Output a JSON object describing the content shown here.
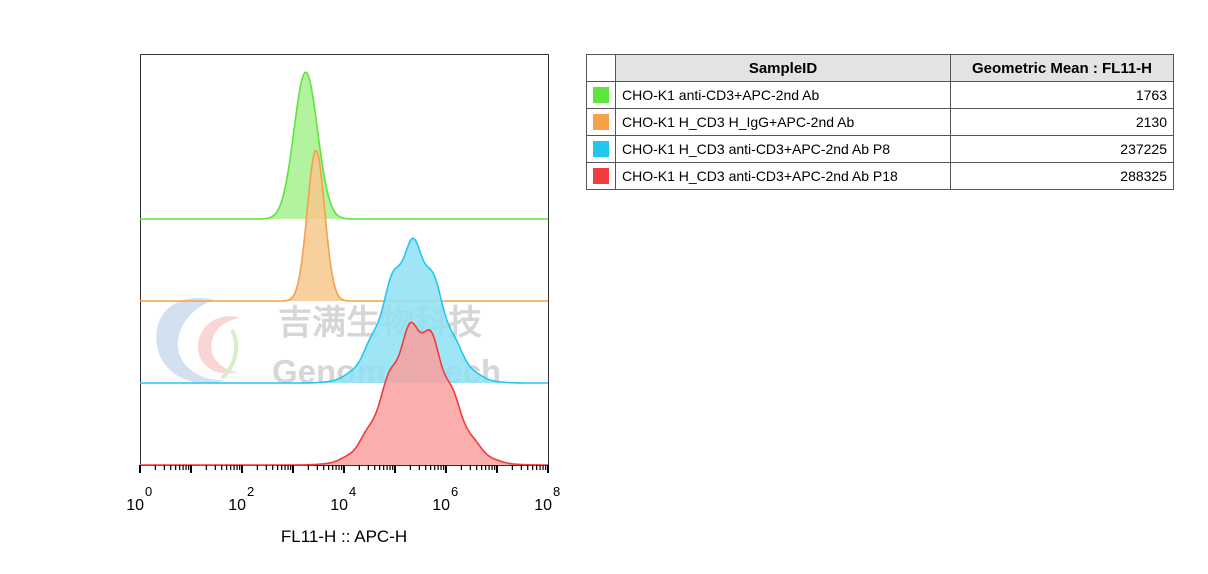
{
  "chart_data": {
    "type": "histogram-overlay",
    "xlabel": "FL11-H :: APC-H",
    "x_scale": "log10",
    "xlim": [
      1,
      100000000
    ],
    "x_ticks": [
      {
        "base": "10",
        "exp": "0",
        "value": 1
      },
      {
        "base": "10",
        "exp": "2",
        "value": 100
      },
      {
        "base": "10",
        "exp": "4",
        "value": 10000
      },
      {
        "base": "10",
        "exp": "6",
        "value": 1000000
      },
      {
        "base": "10",
        "exp": "8",
        "value": 100000000
      }
    ],
    "series": [
      {
        "name": "CHO-K1 anti-CD3+APC-2nd Ab",
        "color": "#5ce63c",
        "fill": "#a6f08e",
        "peak_log10": 3.25,
        "width_log10": 0.23,
        "peak_height": 1.0
      },
      {
        "name": "CHO-K1 H_CD3 H_IgG+APC-2nd Ab",
        "color": "#f5a04b",
        "fill": "#f7c88c",
        "peak_log10": 3.45,
        "width_log10": 0.17,
        "peak_height": 1.0
      },
      {
        "name": "CHO-K1 H_CD3 anti-CD3+APC-2nd Ab P8",
        "color": "#23c7ee",
        "fill": "#8fe0f5",
        "peak_log10": 5.35,
        "width_log10": 0.55,
        "peak_height": 1.0
      },
      {
        "name": "CHO-K1 H_CD3 anti-CD3+APC-2nd Ab P18",
        "color": "#f23c3c",
        "fill": "#f9a0a0",
        "peak_log10": 5.45,
        "width_log10": 0.6,
        "peak_height": 1.0
      }
    ]
  },
  "watermark": {
    "cn_text": "吉满生物科技",
    "en_text": "Genomeditech"
  },
  "table": {
    "headers": [
      "SampleID",
      "Geometric Mean : FL11-H"
    ],
    "rows": [
      {
        "color": "#5ce63c",
        "sample": "CHO-K1 anti-CD3+APC-2nd Ab",
        "mean": "1763"
      },
      {
        "color": "#f5a04b",
        "sample": "CHO-K1 H_CD3 H_IgG+APC-2nd Ab",
        "mean": "2130"
      },
      {
        "color": "#23c7ee",
        "sample": "CHO-K1 H_CD3 anti-CD3+APC-2nd Ab P8",
        "mean": "237225"
      },
      {
        "color": "#f23c3c",
        "sample": "CHO-K1 H_CD3 anti-CD3+APC-2nd Ab P18",
        "mean": "288325"
      }
    ]
  }
}
